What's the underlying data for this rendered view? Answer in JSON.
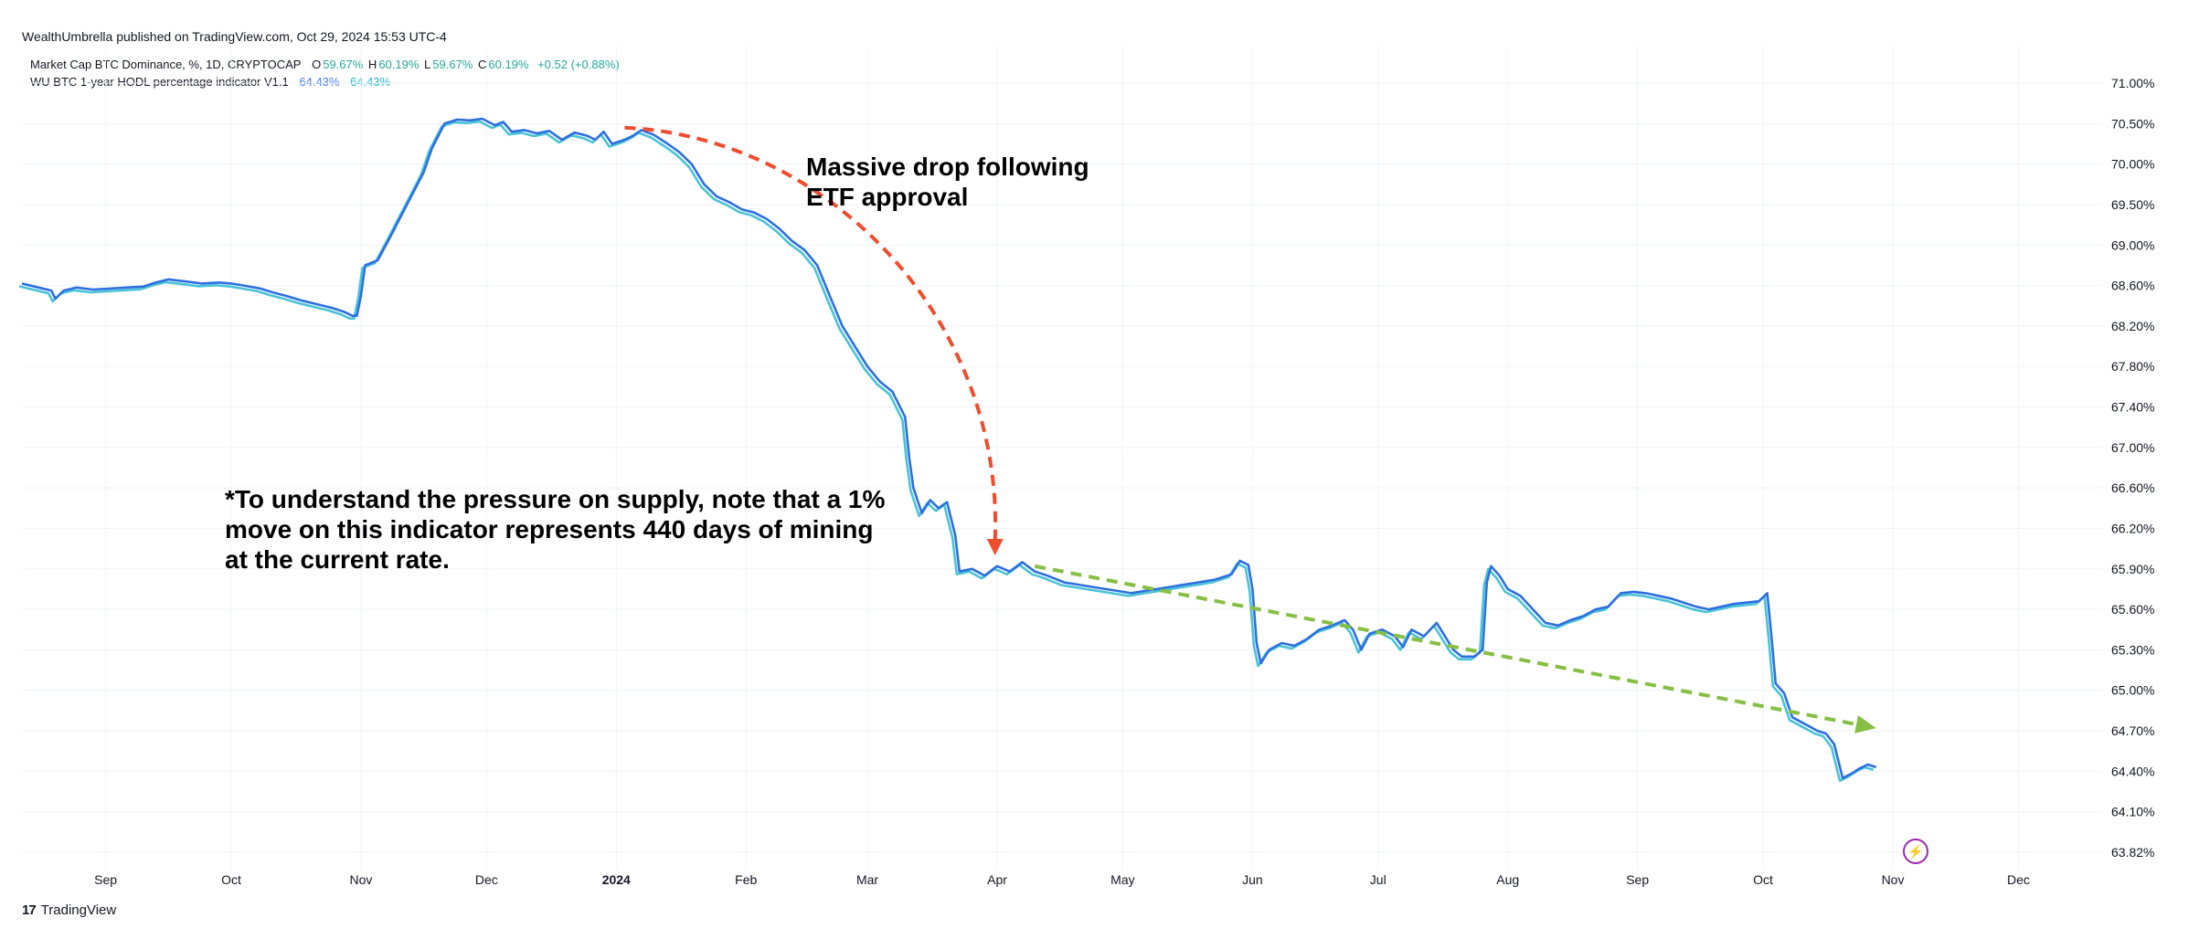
{
  "header": {
    "published": "WealthUmbrella published on TradingView.com, Oct 29, 2024 15:53 UTC-4"
  },
  "legend": {
    "series1": {
      "label": "Market Cap BTC Dominance, %, 1D, CRYPTOCAP",
      "o_key": "O",
      "o_val": "59.67%",
      "h_key": "H",
      "h_val": "60.19%",
      "l_key": "L",
      "l_val": "59.67%",
      "c_key": "C",
      "c_val": "60.19%",
      "change": "+0.52 (+0.88%)"
    },
    "series2": {
      "label": "WU BTC 1-year HODL percentage indicator V1.1",
      "val1": "64.43%",
      "val2": "64.43%"
    }
  },
  "annotations": {
    "etf_line1": "Massive drop following",
    "etf_line2": "ETF approval",
    "note_line1": "*To understand the pressure on supply, note that a 1%",
    "note_line2": "move on this indicator represents 440 days of mining",
    "note_line3": "at the current rate."
  },
  "footer": {
    "brand": "TradingView",
    "logo": "17"
  },
  "colors": {
    "series_dark": "#2d6fe0",
    "series_light": "#49c3d6",
    "red_arrow": "#ee4d2e",
    "green_arrow": "#86bf43",
    "grid": "#f0f3fa"
  },
  "chart_data": {
    "type": "line",
    "title": "WU BTC 1-year HODL percentage indicator V1.1",
    "xlabel": "",
    "ylabel": "",
    "ylim": [
      63.75,
      71.05
    ],
    "y_ticks": [
      63.82,
      64.1,
      64.4,
      64.7,
      65.0,
      65.3,
      65.6,
      65.9,
      66.2,
      66.6,
      67.0,
      67.4,
      67.8,
      68.2,
      68.6,
      69.0,
      69.5,
      70.0,
      70.5,
      71.0
    ],
    "y_tick_labels": [
      "63.82%",
      "64.10%",
      "64.40%",
      "64.70%",
      "65.00%",
      "65.30%",
      "65.60%",
      "65.90%",
      "66.20%",
      "66.60%",
      "67.00%",
      "67.40%",
      "67.80%",
      "68.20%",
      "68.60%",
      "69.00%",
      "69.50%",
      "70.00%",
      "70.50%",
      "71.00%"
    ],
    "x_ticks": [
      {
        "day": 15,
        "label": "Sep",
        "bold": false
      },
      {
        "day": 45,
        "label": "Oct",
        "bold": false
      },
      {
        "day": 76,
        "label": "Nov",
        "bold": false
      },
      {
        "day": 106,
        "label": "Dec",
        "bold": false
      },
      {
        "day": 137,
        "label": "2024",
        "bold": true
      },
      {
        "day": 168,
        "label": "Feb",
        "bold": false
      },
      {
        "day": 197,
        "label": "Mar",
        "bold": false
      },
      {
        "day": 228,
        "label": "Apr",
        "bold": false
      },
      {
        "day": 258,
        "label": "May",
        "bold": false
      },
      {
        "day": 289,
        "label": "Jun",
        "bold": false
      },
      {
        "day": 319,
        "label": "Jul",
        "bold": false
      },
      {
        "day": 350,
        "label": "Aug",
        "bold": false
      },
      {
        "day": 381,
        "label": "Sep",
        "bold": false
      },
      {
        "day": 411,
        "label": "Oct",
        "bold": false
      },
      {
        "day": 442,
        "label": "Nov",
        "bold": false
      },
      {
        "day": 472,
        "label": "Dec",
        "bold": false
      }
    ],
    "x_range": [
      -5,
      492
    ],
    "series": [
      {
        "name": "WU BTC 1-year HODL percentage indicator V1.1",
        "points": [
          [
            -5,
            68.62
          ],
          [
            -1,
            68.58
          ],
          [
            2,
            68.55
          ],
          [
            3,
            68.47
          ],
          [
            5,
            68.55
          ],
          [
            8,
            68.58
          ],
          [
            12,
            68.56
          ],
          [
            16,
            68.57
          ],
          [
            20,
            68.58
          ],
          [
            24,
            68.59
          ],
          [
            27,
            68.63
          ],
          [
            30,
            68.66
          ],
          [
            34,
            68.64
          ],
          [
            38,
            68.62
          ],
          [
            42,
            68.63
          ],
          [
            45,
            68.62
          ],
          [
            48,
            68.6
          ],
          [
            52,
            68.57
          ],
          [
            55,
            68.53
          ],
          [
            58,
            68.5
          ],
          [
            62,
            68.45
          ],
          [
            66,
            68.41
          ],
          [
            69,
            68.38
          ],
          [
            72,
            68.34
          ],
          [
            74,
            68.3
          ],
          [
            75,
            68.3
          ],
          [
            76,
            68.5
          ],
          [
            77,
            68.8
          ],
          [
            80,
            68.85
          ],
          [
            83,
            69.1
          ],
          [
            86,
            69.4
          ],
          [
            89,
            69.7
          ],
          [
            91,
            69.9
          ],
          [
            93,
            70.2
          ],
          [
            96,
            70.5
          ],
          [
            99,
            70.55
          ],
          [
            102,
            70.54
          ],
          [
            105,
            70.56
          ],
          [
            108,
            70.48
          ],
          [
            110,
            70.52
          ],
          [
            112,
            70.4
          ],
          [
            115,
            70.42
          ],
          [
            118,
            70.38
          ],
          [
            121,
            70.41
          ],
          [
            124,
            70.3
          ],
          [
            127,
            70.39
          ],
          [
            130,
            70.35
          ],
          [
            132,
            70.3
          ],
          [
            134,
            70.4
          ],
          [
            136,
            70.25
          ],
          [
            139,
            70.3
          ],
          [
            141,
            70.35
          ],
          [
            143,
            70.42
          ],
          [
            146,
            70.36
          ],
          [
            149,
            70.26
          ],
          [
            152,
            70.15
          ],
          [
            155,
            70.0
          ],
          [
            158,
            69.75
          ],
          [
            161,
            69.6
          ],
          [
            164,
            69.53
          ],
          [
            167,
            69.44
          ],
          [
            170,
            69.4
          ],
          [
            173,
            69.32
          ],
          [
            176,
            69.2
          ],
          [
            179,
            69.05
          ],
          [
            182,
            68.95
          ],
          [
            185,
            68.8
          ],
          [
            188,
            68.5
          ],
          [
            191,
            68.2
          ],
          [
            194,
            68.0
          ],
          [
            197,
            67.8
          ],
          [
            200,
            67.65
          ],
          [
            203,
            67.55
          ],
          [
            206,
            67.3
          ],
          [
            207,
            66.9
          ],
          [
            208,
            66.6
          ],
          [
            210,
            66.35
          ],
          [
            212,
            66.48
          ],
          [
            214,
            66.4
          ],
          [
            216,
            66.46
          ],
          [
            218,
            66.15
          ],
          [
            219,
            65.88
          ],
          [
            222,
            65.9
          ],
          [
            225,
            65.85
          ],
          [
            228,
            65.92
          ],
          [
            231,
            65.88
          ],
          [
            234,
            65.95
          ],
          [
            237,
            65.88
          ],
          [
            240,
            65.85
          ],
          [
            244,
            65.8
          ],
          [
            248,
            65.78
          ],
          [
            252,
            65.76
          ],
          [
            256,
            65.74
          ],
          [
            260,
            65.72
          ],
          [
            264,
            65.74
          ],
          [
            268,
            65.76
          ],
          [
            272,
            65.78
          ],
          [
            276,
            65.8
          ],
          [
            280,
            65.82
          ],
          [
            284,
            65.86
          ],
          [
            286,
            65.96
          ],
          [
            288,
            65.93
          ],
          [
            289,
            65.75
          ],
          [
            290,
            65.35
          ],
          [
            291,
            65.2
          ],
          [
            293,
            65.3
          ],
          [
            296,
            65.35
          ],
          [
            299,
            65.33
          ],
          [
            302,
            65.38
          ],
          [
            305,
            65.45
          ],
          [
            308,
            65.48
          ],
          [
            311,
            65.52
          ],
          [
            313,
            65.45
          ],
          [
            315,
            65.3
          ],
          [
            317,
            65.42
          ],
          [
            320,
            65.45
          ],
          [
            323,
            65.4
          ],
          [
            325,
            65.32
          ],
          [
            327,
            65.45
          ],
          [
            330,
            65.4
          ],
          [
            333,
            65.5
          ],
          [
            335,
            65.4
          ],
          [
            337,
            65.3
          ],
          [
            339,
            65.25
          ],
          [
            342,
            65.25
          ],
          [
            344,
            65.3
          ],
          [
            345,
            65.8
          ],
          [
            346,
            65.92
          ],
          [
            348,
            65.85
          ],
          [
            350,
            65.75
          ],
          [
            353,
            65.7
          ],
          [
            356,
            65.6
          ],
          [
            359,
            65.5
          ],
          [
            362,
            65.48
          ],
          [
            365,
            65.52
          ],
          [
            368,
            65.55
          ],
          [
            371,
            65.6
          ],
          [
            374,
            65.62
          ],
          [
            377,
            65.72
          ],
          [
            380,
            65.73
          ],
          [
            383,
            65.72
          ],
          [
            386,
            65.7
          ],
          [
            389,
            65.68
          ],
          [
            392,
            65.65
          ],
          [
            395,
            65.62
          ],
          [
            398,
            65.6
          ],
          [
            401,
            65.62
          ],
          [
            404,
            65.64
          ],
          [
            407,
            65.65
          ],
          [
            410,
            65.66
          ],
          [
            412,
            65.72
          ],
          [
            413,
            65.4
          ],
          [
            414,
            65.05
          ],
          [
            416,
            64.98
          ],
          [
            418,
            64.8
          ],
          [
            421,
            64.75
          ],
          [
            424,
            64.7
          ],
          [
            426,
            64.68
          ],
          [
            428,
            64.6
          ],
          [
            430,
            64.35
          ],
          [
            432,
            64.38
          ],
          [
            434,
            64.42
          ],
          [
            436,
            64.45
          ],
          [
            438,
            64.43
          ]
        ]
      }
    ],
    "red_arrow": {
      "start": [
        139,
        70.45
      ],
      "end": [
        227.5,
        66.0
      ]
    },
    "green_arrow": {
      "start": [
        237,
        65.92
      ],
      "end": [
        438,
        64.72
      ]
    }
  }
}
